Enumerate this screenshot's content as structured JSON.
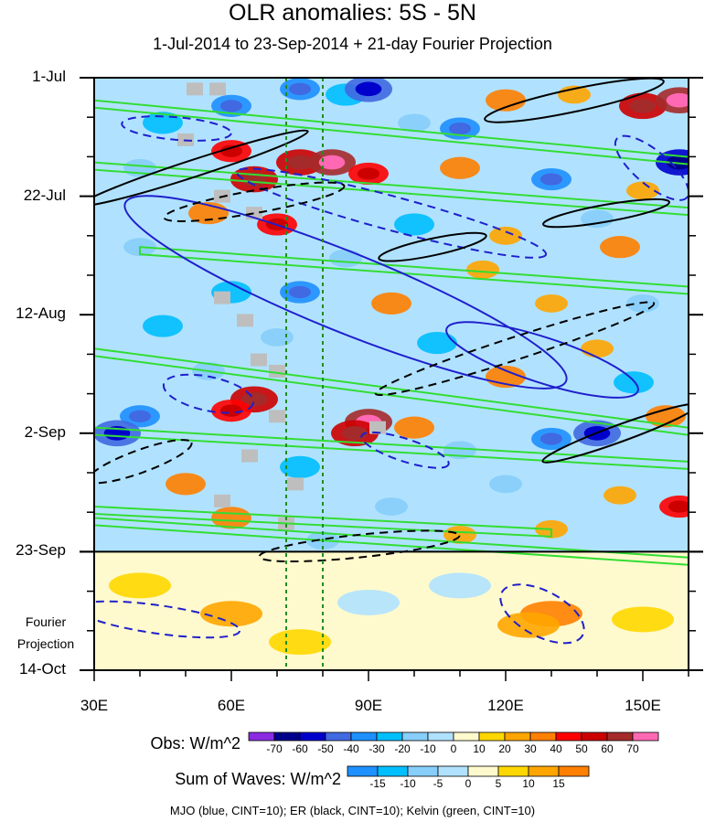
{
  "chart_data": {
    "type": "heatmap",
    "title": "OLR anomalies: 5S - 5N",
    "subtitle": "1-Jul-2014 to 23-Sep-2014 + 21-day Fourier Projection",
    "x_axis": {
      "range": [
        30,
        160
      ],
      "ticks": [
        {
          "value": 30,
          "label": "30E"
        },
        {
          "value": 60,
          "label": "60E"
        },
        {
          "value": 90,
          "label": "90E"
        },
        {
          "value": 120,
          "label": "120E"
        },
        {
          "value": 150,
          "label": "150E"
        }
      ]
    },
    "y_axis": {
      "range_days": [
        0,
        105
      ],
      "ticks": [
        {
          "day": 0,
          "label": "1-Jul"
        },
        {
          "day": 21,
          "label": "22-Jul"
        },
        {
          "day": 42,
          "label": "12-Aug"
        },
        {
          "day": 63,
          "label": "2-Sep"
        },
        {
          "day": 84,
          "label": "23-Sep"
        },
        {
          "day": 105,
          "label": "14-Oct"
        }
      ],
      "forecast_start_day": 84
    },
    "fourier_label": [
      "Fourier",
      "Projection"
    ],
    "reference_lines_lon": [
      72,
      80
    ],
    "obs_colorbar": {
      "title": "Obs: W/m^2",
      "levels": [
        -70,
        -60,
        -50,
        -40,
        -30,
        -20,
        -10,
        0,
        10,
        20,
        30,
        40,
        50,
        60,
        70
      ],
      "colors": [
        "#8a2be2",
        "#00008b",
        "#0000cd",
        "#4169e1",
        "#1e90ff",
        "#00bfff",
        "#87cefa",
        "#b0e2ff",
        "#fffacd",
        "#ffd700",
        "#ffa500",
        "#ff7f00",
        "#ff0000",
        "#cd0000",
        "#a52a2a",
        "#ff69b4"
      ]
    },
    "waves_colorbar": {
      "title": "Sum of Waves: W/m^2",
      "levels": [
        -15,
        -10,
        -5,
        0,
        5,
        10,
        15
      ],
      "colors": [
        "#1e90ff",
        "#00bfff",
        "#87cefa",
        "#b0e2ff",
        "#fffacd",
        "#ffd700",
        "#ffa500",
        "#ff7f00"
      ]
    },
    "anomaly_cells": [
      {
        "lon": 75,
        "day": 2,
        "value": -40
      },
      {
        "lon": 85,
        "day": 3,
        "value": -30
      },
      {
        "lon": 90,
        "day": 2,
        "value": -50
      },
      {
        "lon": 120,
        "day": 4,
        "value": 30
      },
      {
        "lon": 135,
        "day": 3,
        "value": 20
      },
      {
        "lon": 150,
        "day": 5,
        "value": 50
      },
      {
        "lon": 158,
        "day": 4,
        "value": 60
      },
      {
        "lon": 60,
        "day": 5,
        "value": -40
      },
      {
        "lon": 45,
        "day": 8,
        "value": -30
      },
      {
        "lon": 100,
        "day": 8,
        "value": -20
      },
      {
        "lon": 110,
        "day": 9,
        "value": -40
      },
      {
        "lon": 60,
        "day": 13,
        "value": 40
      },
      {
        "lon": 75,
        "day": 15,
        "value": 50
      },
      {
        "lon": 82,
        "day": 15,
        "value": 60
      },
      {
        "lon": 90,
        "day": 17,
        "value": 40
      },
      {
        "lon": 65,
        "day": 18,
        "value": 50
      },
      {
        "lon": 40,
        "day": 16,
        "value": -20
      },
      {
        "lon": 110,
        "day": 16,
        "value": 30
      },
      {
        "lon": 130,
        "day": 18,
        "value": -40
      },
      {
        "lon": 150,
        "day": 20,
        "value": 20
      },
      {
        "lon": 158,
        "day": 15,
        "value": -60
      },
      {
        "lon": 55,
        "day": 24,
        "value": 30
      },
      {
        "lon": 70,
        "day": 26,
        "value": 40
      },
      {
        "lon": 100,
        "day": 26,
        "value": -30
      },
      {
        "lon": 120,
        "day": 28,
        "value": 20
      },
      {
        "lon": 140,
        "day": 25,
        "value": -20
      },
      {
        "lon": 145,
        "day": 30,
        "value": 30
      },
      {
        "lon": 40,
        "day": 30,
        "value": -20
      },
      {
        "lon": 85,
        "day": 32,
        "value": -20
      },
      {
        "lon": 115,
        "day": 34,
        "value": 20
      },
      {
        "lon": 60,
        "day": 38,
        "value": -30
      },
      {
        "lon": 75,
        "day": 38,
        "value": -40
      },
      {
        "lon": 95,
        "day": 40,
        "value": 30
      },
      {
        "lon": 130,
        "day": 40,
        "value": 20
      },
      {
        "lon": 150,
        "day": 40,
        "value": -20
      },
      {
        "lon": 45,
        "day": 44,
        "value": -30
      },
      {
        "lon": 70,
        "day": 46,
        "value": -20
      },
      {
        "lon": 105,
        "day": 47,
        "value": -30
      },
      {
        "lon": 140,
        "day": 48,
        "value": 20
      },
      {
        "lon": 55,
        "day": 52,
        "value": -20
      },
      {
        "lon": 120,
        "day": 53,
        "value": 30
      },
      {
        "lon": 148,
        "day": 54,
        "value": -30
      },
      {
        "lon": 65,
        "day": 57,
        "value": 50
      },
      {
        "lon": 60,
        "day": 59,
        "value": 40
      },
      {
        "lon": 90,
        "day": 61,
        "value": 60
      },
      {
        "lon": 87,
        "day": 63,
        "value": 50
      },
      {
        "lon": 100,
        "day": 62,
        "value": 30
      },
      {
        "lon": 40,
        "day": 60,
        "value": -40
      },
      {
        "lon": 35,
        "day": 63,
        "value": -50
      },
      {
        "lon": 140,
        "day": 63,
        "value": -50
      },
      {
        "lon": 130,
        "day": 64,
        "value": -40
      },
      {
        "lon": 155,
        "day": 60,
        "value": 30
      },
      {
        "lon": 110,
        "day": 66,
        "value": -20
      },
      {
        "lon": 75,
        "day": 69,
        "value": -30
      },
      {
        "lon": 50,
        "day": 72,
        "value": 30
      },
      {
        "lon": 120,
        "day": 72,
        "value": -20
      },
      {
        "lon": 145,
        "day": 74,
        "value": 20
      },
      {
        "lon": 95,
        "day": 76,
        "value": -20
      },
      {
        "lon": 60,
        "day": 78,
        "value": 30
      },
      {
        "lon": 130,
        "day": 80,
        "value": 20
      },
      {
        "lon": 158,
        "day": 76,
        "value": 40
      },
      {
        "lon": 80,
        "day": 82,
        "value": -20
      },
      {
        "lon": 110,
        "day": 81,
        "value": 20
      }
    ],
    "forecast_cells": [
      {
        "lon": 60,
        "day": 95,
        "value": 10
      },
      {
        "lon": 40,
        "day": 90,
        "value": 5
      },
      {
        "lon": 90,
        "day": 93,
        "value": -5
      },
      {
        "lon": 130,
        "day": 95,
        "value": 15
      },
      {
        "lon": 125,
        "day": 97,
        "value": 10
      },
      {
        "lon": 150,
        "day": 96,
        "value": 5
      },
      {
        "lon": 110,
        "day": 90,
        "value": -5
      },
      {
        "lon": 75,
        "day": 100,
        "value": 5
      }
    ],
    "wave_contours": [
      {
        "wave": "MJO",
        "color": "#1f1fcc",
        "dashed": false,
        "lon": 85,
        "day": 38,
        "rx": 52,
        "ry": 7,
        "angle": 22
      },
      {
        "wave": "MJO",
        "color": "#1f1fcc",
        "dashed": false,
        "lon": 128,
        "day": 50,
        "rx": 22,
        "ry": 4,
        "angle": 18
      },
      {
        "wave": "MJO",
        "color": "#1f1fcc",
        "dashed": true,
        "lon": 95,
        "day": 24,
        "rx": 35,
        "ry": 3,
        "angle": 15
      },
      {
        "wave": "MJO",
        "color": "#1f1fcc",
        "dashed": true,
        "lon": 48,
        "day": 9,
        "rx": 12,
        "ry": 2,
        "angle": 5
      },
      {
        "wave": "MJO",
        "color": "#1f1fcc",
        "dashed": true,
        "lon": 55,
        "day": 56,
        "rx": 10,
        "ry": 3,
        "angle": 12
      },
      {
        "wave": "MJO",
        "color": "#1f1fcc",
        "dashed": true,
        "lon": 98,
        "day": 66,
        "rx": 10,
        "ry": 2,
        "angle": 18
      },
      {
        "wave": "MJO",
        "color": "#1f1fcc",
        "dashed": true,
        "lon": 44,
        "day": 96,
        "rx": 18,
        "ry": 2.5,
        "angle": 8
      },
      {
        "wave": "MJO",
        "color": "#1f1fcc",
        "dashed": true,
        "lon": 128,
        "day": 95,
        "rx": 10,
        "ry": 4,
        "angle": 28
      },
      {
        "wave": "MJO",
        "color": "#1f1fcc",
        "dashed": true,
        "lon": 152,
        "day": 16,
        "rx": 10,
        "ry": 3,
        "angle": 40
      },
      {
        "wave": "ER",
        "color": "#000000",
        "dashed": false,
        "lon": 135,
        "day": 4,
        "rx": 20,
        "ry": 2,
        "angle": -12
      },
      {
        "wave": "ER",
        "color": "#000000",
        "dashed": false,
        "lon": 52,
        "day": 16,
        "rx": 26,
        "ry": 1.5,
        "angle": -18
      },
      {
        "wave": "ER",
        "color": "#000000",
        "dashed": false,
        "lon": 104,
        "day": 30,
        "rx": 12,
        "ry": 1.5,
        "angle": -12
      },
      {
        "wave": "ER",
        "color": "#000000",
        "dashed": false,
        "lon": 145,
        "day": 63,
        "rx": 18,
        "ry": 1.5,
        "angle": -20
      },
      {
        "wave": "ER",
        "color": "#000000",
        "dashed": false,
        "lon": 142,
        "day": 24,
        "rx": 14,
        "ry": 1.5,
        "angle": -10
      },
      {
        "wave": "ER",
        "color": "#000000",
        "dashed": true,
        "lon": 122,
        "day": 48,
        "rx": 32,
        "ry": 2,
        "angle": -18
      },
      {
        "wave": "ER",
        "color": "#000000",
        "dashed": true,
        "lon": 65,
        "day": 22,
        "rx": 20,
        "ry": 2,
        "angle": -10
      },
      {
        "wave": "ER",
        "color": "#000000",
        "dashed": true,
        "lon": 40,
        "day": 68,
        "rx": 12,
        "ry": 2,
        "angle": -20
      },
      {
        "wave": "ER",
        "color": "#000000",
        "dashed": true,
        "lon": 88,
        "day": 83,
        "rx": 22,
        "ry": 2,
        "angle": -6
      }
    ],
    "kelvin_bands": [
      {
        "lon0": 30,
        "day0": 4,
        "lon1": 160,
        "day1": 15
      },
      {
        "lon0": 30,
        "day0": 15,
        "lon1": 160,
        "day1": 24
      },
      {
        "lon0": 40,
        "day0": 30,
        "lon1": 160,
        "day1": 38
      },
      {
        "lon0": 30,
        "day0": 48,
        "lon1": 160,
        "day1": 63
      },
      {
        "lon0": 30,
        "day0": 62,
        "lon1": 160,
        "day1": 69
      },
      {
        "lon0": 30,
        "day0": 76,
        "lon1": 130,
        "day1": 81
      },
      {
        "lon0": 30,
        "day0": 78,
        "lon1": 160,
        "day1": 86
      }
    ],
    "missing_data_cells": [
      {
        "lon": 52,
        "day": 2
      },
      {
        "lon": 57,
        "day": 2
      },
      {
        "lon": 50,
        "day": 11
      },
      {
        "lon": 58,
        "day": 21
      },
      {
        "lon": 65,
        "day": 24
      },
      {
        "lon": 58,
        "day": 39
      },
      {
        "lon": 63,
        "day": 43
      },
      {
        "lon": 66,
        "day": 50
      },
      {
        "lon": 70,
        "day": 52
      },
      {
        "lon": 70,
        "day": 60
      },
      {
        "lon": 92,
        "day": 62
      },
      {
        "lon": 64,
        "day": 67
      },
      {
        "lon": 74,
        "day": 72
      },
      {
        "lon": 58,
        "day": 75
      },
      {
        "lon": 72,
        "day": 79
      }
    ],
    "footer": "MJO (blue, CINT=10); ER (black, CINT=10); Kelvin (green, CINT=10)"
  }
}
